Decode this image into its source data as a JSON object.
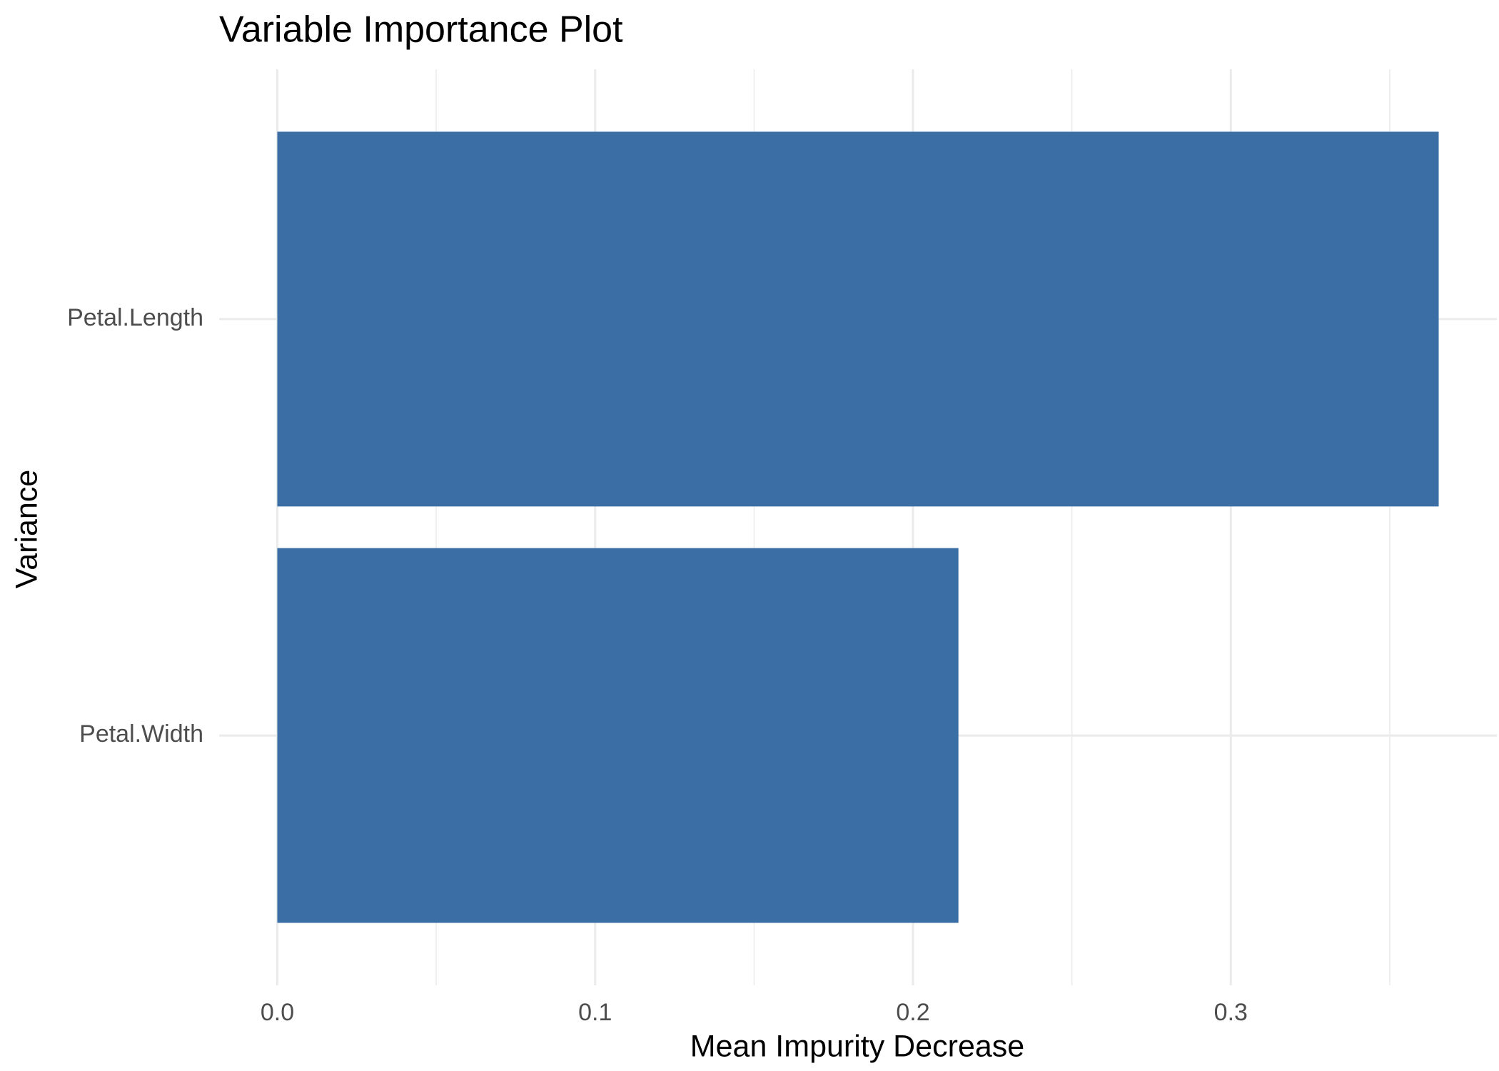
{
  "chart_data": {
    "type": "bar",
    "orientation": "horizontal",
    "title": "Variable Importance Plot",
    "x_label": "Mean Impurity Decrease",
    "y_label": "Variance",
    "categories": [
      "Petal.Length",
      "Petal.Width"
    ],
    "values": [
      0.3654,
      0.2143
    ],
    "color": "#3b6ea5",
    "xlim": [
      -0.0183,
      0.3837
    ],
    "xticks": [
      {
        "value": 0,
        "label": "0.0"
      },
      0.1,
      0.2,
      0.3
    ],
    "minor_xticks": [
      0.05,
      0.15,
      0.25,
      0.35
    ],
    "grid": true
  }
}
